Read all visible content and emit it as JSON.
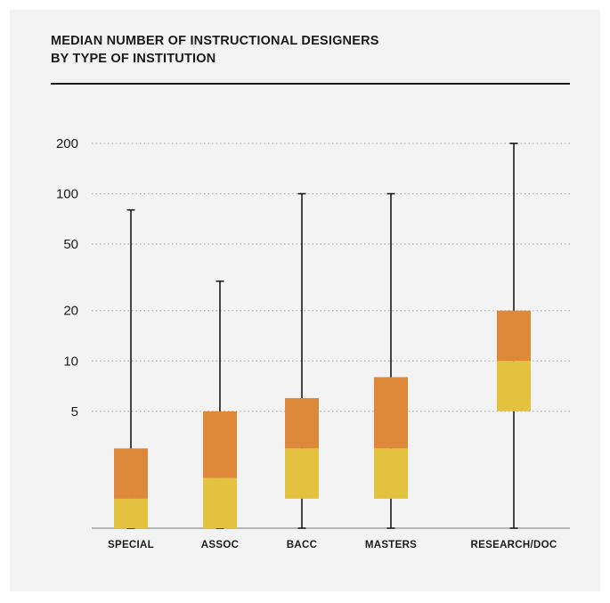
{
  "title": {
    "line1": "MEDIAN NUMBER OF INSTRUCTIONAL DESIGNERS",
    "line2": "BY TYPE OF INSTITUTION"
  },
  "colors": {
    "background": "#f3f3f3",
    "upper_box": "#de893a",
    "lower_box": "#e2c23e",
    "whisker": "#1a1a1a",
    "grid": "#b5b5b5"
  },
  "chart_data": {
    "type": "box",
    "title": "MEDIAN NUMBER OF INSTRUCTIONAL DESIGNERS BY TYPE OF INSTITUTION",
    "xlabel": "",
    "ylabel": "",
    "yscale": "log",
    "ylim": [
      1,
      200
    ],
    "yticks": [
      5,
      10,
      20,
      50,
      100,
      200
    ],
    "grid": "horizontal dotted",
    "legend": "none",
    "categories": [
      "SPECIAL",
      "ASSOC",
      "BACC",
      "MASTERS",
      "RESEARCH/DOC"
    ],
    "series": [
      {
        "category": "SPECIAL",
        "min": 1,
        "q1": 1,
        "median": 1.5,
        "q3": 3,
        "max": 80
      },
      {
        "category": "ASSOC",
        "min": 1,
        "q1": 1,
        "median": 2,
        "q3": 5,
        "max": 30
      },
      {
        "category": "BACC",
        "min": 1,
        "q1": 1.5,
        "median": 3,
        "q3": 6,
        "max": 100
      },
      {
        "category": "MASTERS",
        "min": 1,
        "q1": 1.5,
        "median": 3,
        "q3": 8,
        "max": 100
      },
      {
        "category": "RESEARCH/DOC",
        "min": 1,
        "q1": 5,
        "median": 10,
        "q3": 20,
        "max": 200
      }
    ]
  }
}
